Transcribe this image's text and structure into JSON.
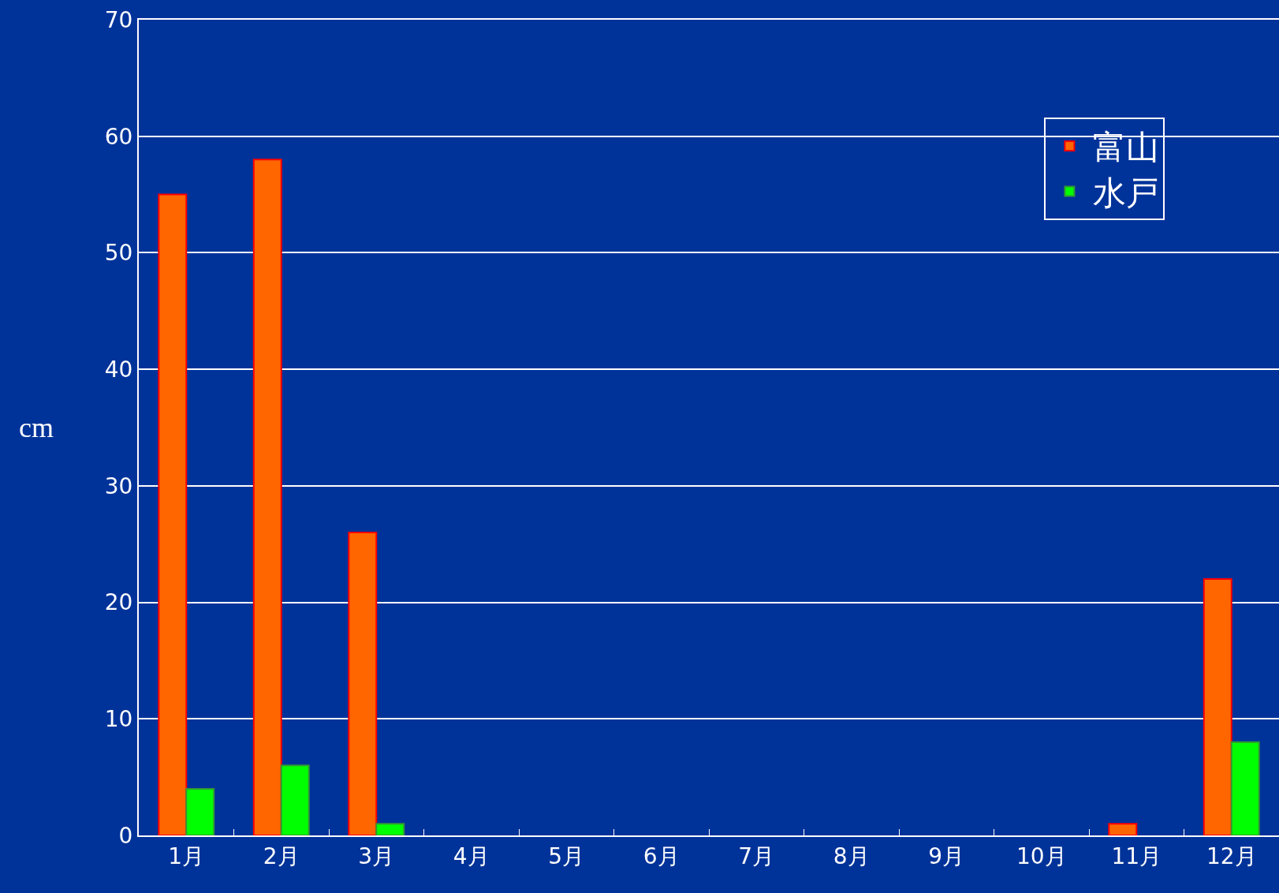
{
  "chart_data": {
    "type": "bar",
    "ylabel": "cm",
    "categories": [
      "1月",
      "2月",
      "3月",
      "4月",
      "5月",
      "6月",
      "7月",
      "8月",
      "9月",
      "10月",
      "11月",
      "12月"
    ],
    "series": [
      {
        "name": "富山",
        "color": "#ff6600",
        "values": [
          55,
          58,
          26,
          0,
          0,
          0,
          0,
          0,
          0,
          0,
          1,
          22
        ]
      },
      {
        "name": "水戸",
        "color": "#00ff00",
        "values": [
          4,
          6,
          1,
          0,
          0,
          0,
          0,
          0,
          0,
          0,
          0,
          8
        ]
      }
    ],
    "ylim": [
      0,
      70
    ],
    "yticks": [
      0,
      10,
      20,
      30,
      40,
      50,
      60,
      70
    ],
    "grid": "y",
    "legend": "top right"
  }
}
